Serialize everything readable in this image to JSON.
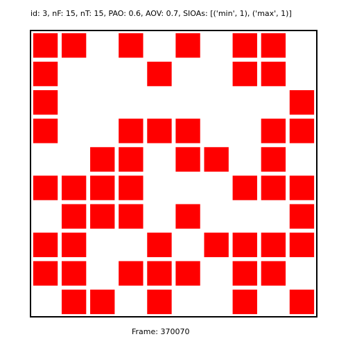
{
  "header": {
    "title": "id: 3, nF: 15, nT: 15, PAO: 0.6, AOV: 0.7, SIOAs: [('min', 1), ('max', 1)]"
  },
  "footer": {
    "frame_label": "Frame: 370070"
  },
  "grid": {
    "rows": 10,
    "cols": 10,
    "cell_color": "#ff0000",
    "cells": [
      [
        1,
        1,
        0,
        1,
        0,
        1,
        0,
        1,
        1,
        0
      ],
      [
        1,
        0,
        0,
        0,
        1,
        0,
        0,
        1,
        1,
        0
      ],
      [
        1,
        0,
        0,
        0,
        0,
        0,
        0,
        0,
        0,
        1
      ],
      [
        1,
        0,
        0,
        1,
        1,
        1,
        0,
        0,
        1,
        1
      ],
      [
        0,
        0,
        1,
        1,
        0,
        1,
        1,
        0,
        1,
        0
      ],
      [
        1,
        1,
        1,
        1,
        0,
        0,
        0,
        1,
        1,
        1
      ],
      [
        0,
        1,
        1,
        1,
        0,
        1,
        0,
        0,
        0,
        1
      ],
      [
        1,
        1,
        0,
        0,
        1,
        0,
        1,
        1,
        1,
        1
      ],
      [
        1,
        1,
        0,
        1,
        1,
        1,
        0,
        1,
        1,
        0
      ],
      [
        0,
        1,
        1,
        0,
        1,
        0,
        0,
        1,
        0,
        1
      ]
    ]
  }
}
